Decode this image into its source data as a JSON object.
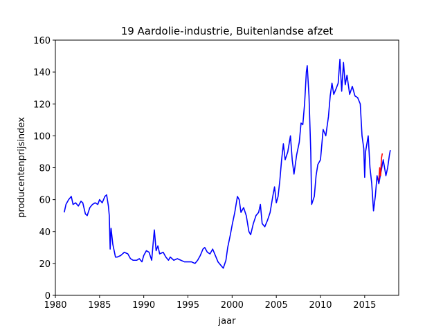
{
  "chart_data": {
    "type": "line",
    "title": "19 Aardolie-industrie, Buitenlandse afzet",
    "xlabel": "jaar",
    "ylabel": "producentenprijsindex",
    "xlim": [
      1980,
      2018.85
    ],
    "ylim": [
      0,
      160
    ],
    "xticks": [
      1980,
      1985,
      1990,
      1995,
      2000,
      2005,
      2010,
      2015
    ],
    "yticks": [
      0,
      20,
      40,
      60,
      80,
      100,
      120,
      140,
      160
    ],
    "grid": false,
    "series": [
      {
        "color": "#0000ff",
        "x": [
          1981.0,
          1981.2,
          1981.5,
          1981.8,
          1982.0,
          1982.3,
          1982.6,
          1982.9,
          1983.1,
          1983.4,
          1983.6,
          1983.9,
          1984.2,
          1984.5,
          1984.8,
          1985.0,
          1985.3,
          1985.6,
          1985.8,
          1986.0,
          1986.1,
          1986.2,
          1986.3,
          1986.5,
          1986.8,
          1987.0,
          1987.4,
          1987.8,
          1988.2,
          1988.5,
          1988.8,
          1989.2,
          1989.5,
          1989.8,
          1990.0,
          1990.3,
          1990.6,
          1990.9,
          1991.1,
          1991.2,
          1991.4,
          1991.6,
          1991.8,
          1992.2,
          1992.5,
          1992.8,
          1993.0,
          1993.4,
          1993.8,
          1994.2,
          1994.6,
          1995.0,
          1995.4,
          1995.8,
          1996.1,
          1996.4,
          1996.7,
          1996.9,
          1997.2,
          1997.5,
          1997.8,
          1998.1,
          1998.4,
          1998.7,
          1999.0,
          1999.3,
          1999.5,
          1999.8,
          2000.0,
          2000.3,
          2000.6,
          2000.8,
          2001.0,
          2001.3,
          2001.6,
          2001.9,
          2002.1,
          2002.4,
          2002.7,
          2003.0,
          2003.2,
          2003.4,
          2003.7,
          2004.0,
          2004.3,
          2004.6,
          2004.8,
          2005.0,
          2005.2,
          2005.4,
          2005.6,
          2005.8,
          2006.0,
          2006.3,
          2006.6,
          2006.8,
          2007.0,
          2007.3,
          2007.6,
          2007.8,
          2008.0,
          2008.2,
          2008.4,
          2008.5,
          2008.7,
          2008.9,
          2009.0,
          2009.3,
          2009.5,
          2009.7,
          2010.0,
          2010.3,
          2010.6,
          2010.9,
          2011.1,
          2011.3,
          2011.5,
          2011.8,
          2012.0,
          2012.2,
          2012.4,
          2012.6,
          2012.8,
          2013.0,
          2013.3,
          2013.6,
          2013.9,
          2014.2,
          2014.5,
          2014.7,
          2014.9,
          2015.0,
          2015.1,
          2015.4,
          2015.6,
          2015.8,
          2016.0,
          2016.2,
          2016.4,
          2016.6,
          2016.8,
          2017.1,
          2017.4,
          2017.6,
          2017.8,
          2017.9
        ],
        "values": [
          52,
          57,
          60,
          62,
          57,
          58,
          56,
          59,
          58,
          51,
          50,
          55,
          57,
          58,
          57,
          60,
          58,
          62,
          63,
          56,
          50,
          29,
          42,
          32,
          24,
          24,
          25,
          27,
          26,
          23,
          22,
          22,
          23,
          21,
          25,
          28,
          27,
          22,
          35,
          41,
          28,
          31,
          26,
          27,
          24,
          22,
          24,
          22,
          23,
          22,
          21,
          21,
          21,
          20,
          22,
          25,
          29,
          30,
          27,
          26,
          29,
          25,
          21,
          19,
          17,
          22,
          30,
          38,
          44,
          52,
          62,
          60,
          52,
          55,
          50,
          40,
          38,
          45,
          50,
          52,
          57,
          45,
          43,
          47,
          52,
          62,
          68,
          58,
          62,
          72,
          85,
          95,
          85,
          90,
          100,
          85,
          76,
          88,
          96,
          108,
          107,
          120,
          140,
          144,
          125,
          90,
          57,
          62,
          75,
          82,
          85,
          104,
          100,
          112,
          125,
          133,
          126,
          130,
          133,
          148,
          128,
          146,
          132,
          138,
          126,
          131,
          125,
          124,
          120,
          100,
          92,
          74,
          90,
          100,
          80,
          70,
          53,
          62,
          75,
          70,
          76,
          85,
          75,
          80,
          88,
          91
        ]
      },
      {
        "color": "#ff0000",
        "x": [
          2016.6,
          2016.7,
          2016.8,
          2016.9,
          2017.0
        ],
        "values": [
          72,
          80,
          75,
          86,
          89
        ]
      }
    ]
  }
}
